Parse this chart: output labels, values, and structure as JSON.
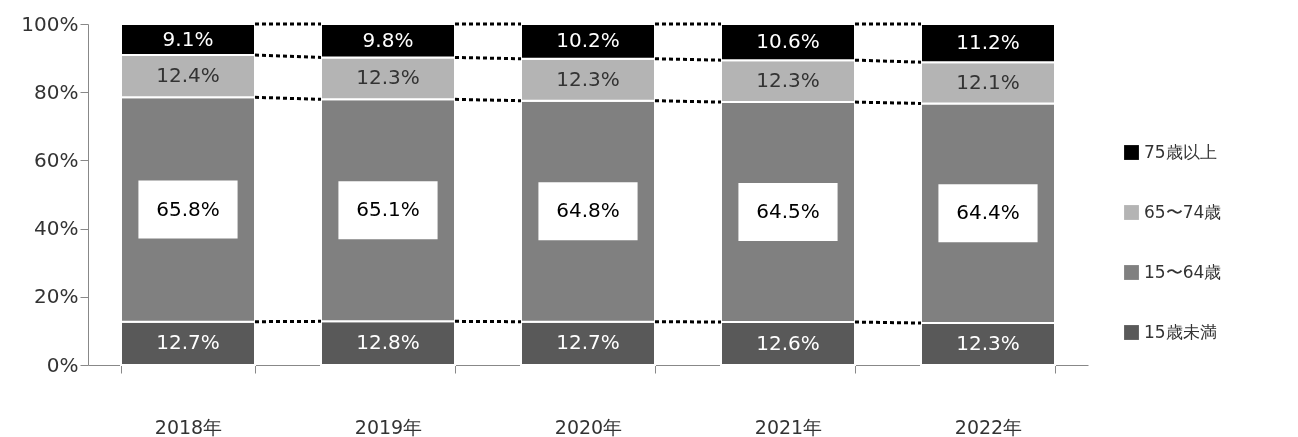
{
  "chart_data": {
    "type": "bar",
    "stacked": true,
    "categories": [
      "2018年",
      "2019年",
      "2020年",
      "2021年",
      "2022年"
    ],
    "series": [
      {
        "name": "15歳未満",
        "color": "#595959",
        "values": [
          12.7,
          12.8,
          12.7,
          12.6,
          12.3
        ],
        "value_labels": [
          "12.7%",
          "12.8%",
          "12.7%",
          "12.6%",
          "12.3%"
        ]
      },
      {
        "name": "15〜64歳",
        "color": "#808080",
        "values": [
          65.8,
          65.1,
          64.8,
          64.5,
          64.4
        ],
        "value_labels": [
          "65.8%",
          "65.1%",
          "64.8%",
          "64.5%",
          "64.4%"
        ]
      },
      {
        "name": "65〜74歳",
        "color": "#b4b4b4",
        "values": [
          12.4,
          12.3,
          12.3,
          12.3,
          12.1
        ],
        "value_labels": [
          "12.4%",
          "12.3%",
          "12.3%",
          "12.3%",
          "12.1%"
        ]
      },
      {
        "name": "75歳以上",
        "color": "#000000",
        "values": [
          9.1,
          9.8,
          10.2,
          10.6,
          11.2
        ],
        "value_labels": [
          "9.1%",
          "9.8%",
          "10.2%",
          "10.6%",
          "11.2%"
        ]
      }
    ],
    "ylim": [
      0,
      100
    ],
    "yticks": [
      {
        "value": 0,
        "label": "0%"
      },
      {
        "value": 20,
        "label": "20%"
      },
      {
        "value": 40,
        "label": "40%"
      },
      {
        "value": 60,
        "label": "60%"
      },
      {
        "value": 80,
        "label": "80%"
      },
      {
        "value": 100,
        "label": "100%"
      }
    ],
    "grid": false,
    "legend": "right"
  }
}
